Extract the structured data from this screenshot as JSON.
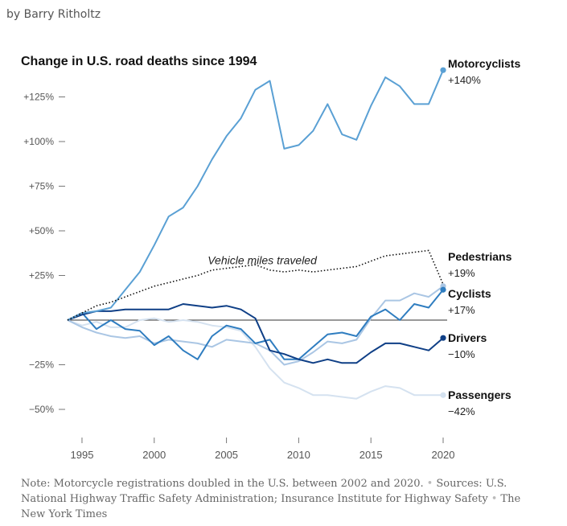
{
  "byline": "by Barry Ritholtz",
  "note": {
    "text": "Note: Motorcycle registrations doubled in the U.S. between 2002 and 2020.",
    "sources": "Sources: U.S. National Highway Traffic Safety Administration; Insurance Institute for Highway Safety",
    "credit": "The New York Times"
  },
  "chart_data": {
    "type": "line",
    "title": "Change in U.S. road deaths since 1994",
    "xlabel": "",
    "ylabel": "",
    "xlim": [
      1994,
      2020
    ],
    "ylim": [
      -60,
      135
    ],
    "x_ticks": [
      1995,
      2000,
      2005,
      2010,
      2015,
      2020
    ],
    "y_ticks": [
      {
        "value": 125,
        "label": "+125%"
      },
      {
        "value": 100,
        "label": "+100%"
      },
      {
        "value": 75,
        "label": "+75%"
      },
      {
        "value": 50,
        "label": "+50%"
      },
      {
        "value": 25,
        "label": "+25%"
      },
      {
        "value": -25,
        "label": "−25%"
      },
      {
        "value": -50,
        "label": "−50%"
      }
    ],
    "x": [
      1994,
      1995,
      1996,
      1997,
      1998,
      1999,
      2000,
      2001,
      2002,
      2003,
      2004,
      2005,
      2006,
      2007,
      2008,
      2009,
      2010,
      2011,
      2012,
      2013,
      2014,
      2015,
      2016,
      2017,
      2018,
      2019,
      2020
    ],
    "series": [
      {
        "name": "Motorcyclists",
        "end_label": "+140%",
        "color": "#5aa0d4",
        "dot": true,
        "values": [
          0,
          4,
          5,
          7,
          17,
          27,
          42,
          58,
          63,
          75,
          90,
          103,
          113,
          129,
          134,
          96,
          98,
          106,
          121,
          104,
          101,
          120,
          136,
          131,
          121,
          121,
          140
        ]
      },
      {
        "name": "Vehicle miles traveled",
        "end_label": "",
        "color": "#111111",
        "dash": true,
        "values": [
          0,
          4,
          8,
          10,
          13,
          16,
          19,
          21,
          23,
          25,
          28,
          29,
          30,
          31,
          28,
          27,
          28,
          27,
          28,
          29,
          30,
          33,
          36,
          37,
          38,
          39,
          20
        ]
      },
      {
        "name": "Pedestrians",
        "end_label": "+19%",
        "color": "#aac6e4",
        "dot": true,
        "values": [
          0,
          -4,
          -7,
          -9,
          -10,
          -9,
          -13,
          -11,
          -12,
          -13,
          -15,
          -11,
          -12,
          -13,
          -17,
          -25,
          -23,
          -18,
          -12,
          -13,
          -11,
          1,
          11,
          11,
          15,
          13,
          19
        ]
      },
      {
        "name": "Cyclists",
        "end_label": "+17%",
        "color": "#2f7dc0",
        "dot": true,
        "values": [
          0,
          4,
          -5,
          0,
          -5,
          -6,
          -14,
          -9,
          -17,
          -22,
          -9,
          -3,
          -5,
          -13,
          -11,
          -22,
          -22,
          -15,
          -8,
          -7,
          -9,
          2,
          6,
          0,
          9,
          7,
          17
        ]
      },
      {
        "name": "Drivers",
        "end_label": "−10%",
        "color": "#0f3f86",
        "dot": true,
        "values": [
          0,
          3,
          5,
          5,
          6,
          6,
          6,
          6,
          9,
          8,
          7,
          8,
          6,
          1,
          -17,
          -19,
          -22,
          -24,
          -22,
          -24,
          -24,
          -18,
          -13,
          -13,
          -15,
          -17,
          -10
        ]
      },
      {
        "name": "Passengers",
        "end_label": "−42%",
        "color": "#d5e2f0",
        "dot": true,
        "values": [
          0,
          -3,
          -1,
          -4,
          -4,
          0,
          1,
          -1,
          0,
          -1,
          -3,
          -4,
          -6,
          -15,
          -27,
          -35,
          -38,
          -42,
          -42,
          -43,
          -44,
          -40,
          -37,
          -38,
          -42,
          -42,
          -42
        ]
      }
    ],
    "annotations": [
      {
        "text": "Vehicle miles traveled",
        "x": 2003.7,
        "y": 33
      }
    ],
    "grid": false,
    "legend": "direct labels at right"
  }
}
